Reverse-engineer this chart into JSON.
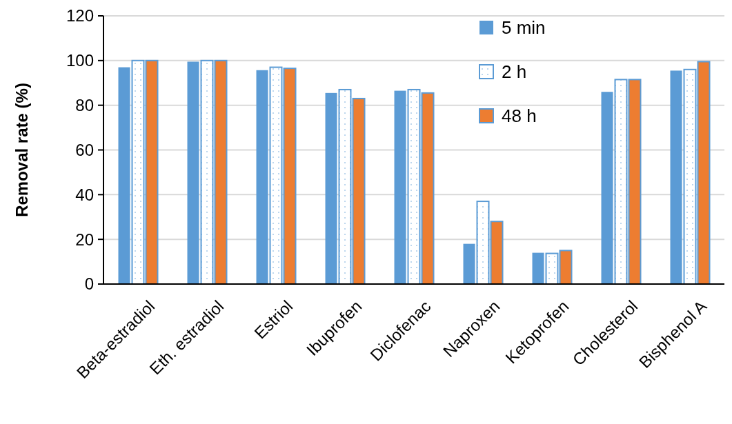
{
  "chart_data": {
    "type": "bar",
    "ylabel": "Removal rate (%)",
    "categories": [
      "Beta-estradiol",
      "Eth. estradiol",
      "Estriol",
      "Ibuprofen",
      "Diclofenac",
      "Naproxen",
      "Ketoprofen",
      "Cholesterol",
      "Bisphenol A"
    ],
    "series": [
      {
        "name": "5 min",
        "color": "#5b9bd5",
        "values": [
          97,
          99.5,
          95.7,
          85.5,
          86.5,
          18,
          14,
          86,
          95.5
        ]
      },
      {
        "name": "2 h",
        "color": "#5b9bd5",
        "values": [
          100,
          100,
          97,
          87,
          87,
          37,
          13.7,
          91.5,
          96
        ]
      },
      {
        "name": "48 h",
        "color": "#ed7d31",
        "values": [
          100,
          100,
          96.5,
          83,
          85.5,
          28,
          15,
          91.5,
          99.5
        ]
      }
    ],
    "ylim": [
      0,
      120
    ],
    "yticks": [
      0,
      20,
      40,
      60,
      80,
      100,
      120
    ],
    "grid": "y",
    "legend": "top right"
  }
}
